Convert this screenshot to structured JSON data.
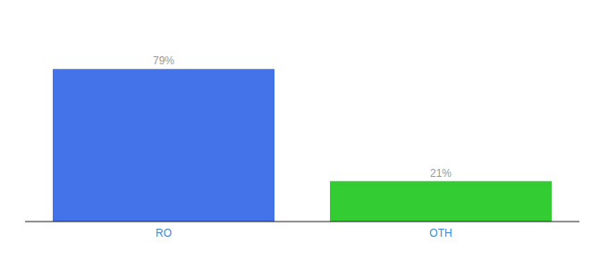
{
  "chart_data": {
    "type": "bar",
    "categories": [
      "RO",
      "OTH"
    ],
    "values": [
      79,
      21
    ],
    "value_labels": [
      "79%",
      "21%"
    ],
    "colors": [
      "#4472e8",
      "#33cc33"
    ],
    "ylim": [
      0,
      100
    ],
    "data_labels": true,
    "tick_labels": "x",
    "grid": false
  }
}
